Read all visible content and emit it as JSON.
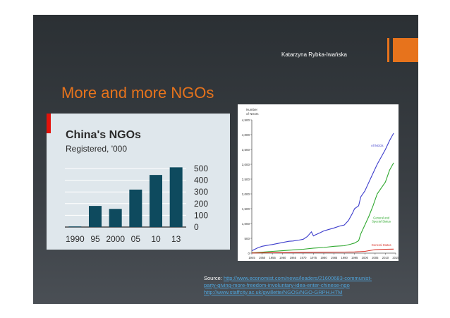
{
  "slide": {
    "author": "Katarzyna Rybka-Iwańska",
    "title": "More and more NGOs",
    "accent_color": "#e7731c"
  },
  "source": {
    "label": "Source: ",
    "links": [
      "http://www.economist.com/news/leaders/21600683-communist-",
      "party-giving-more-freedom-involuntary-idea-enter-chinese-ngo",
      "http://www.staffcity.ac.uk/gwillette/NGOS/NGO-GRPH.HTM"
    ]
  },
  "chart_data": [
    {
      "type": "bar",
      "title": "China's NGOs",
      "subtitle": "Registered, '000",
      "categories": [
        "1990",
        "95",
        "2000",
        "05",
        "10",
        "13"
      ],
      "values": [
        5,
        180,
        155,
        320,
        445,
        510
      ],
      "ylim": [
        0,
        500
      ],
      "yticks": [
        "0",
        "100",
        "200",
        "300",
        "400",
        "500"
      ],
      "bar_color": "#0e4a5e",
      "accent_color": "#e3120b"
    },
    {
      "type": "line",
      "ylabel": "Number of NGOs",
      "xlim": [
        1945,
        2015
      ],
      "ylim": [
        0,
        4500
      ],
      "xticks": [
        "1945",
        "1950",
        "1955",
        "1960",
        "1965",
        "1970",
        "1975",
        "1980",
        "1985",
        "1990",
        "1995",
        "2000",
        "2005",
        "2010",
        "2015"
      ],
      "yticks": [
        "0",
        "500",
        "1,000",
        "1,500",
        "2,000",
        "2,500",
        "3,000",
        "3,500",
        "4,000",
        "4,500"
      ],
      "series": [
        {
          "name": "All NGOs",
          "color": "#3c3ccc",
          "x": [
            1945,
            1948,
            1950,
            1953,
            1955,
            1958,
            1960,
            1963,
            1965,
            1968,
            1970,
            1972,
            1974,
            1975,
            1976,
            1978,
            1980,
            1982,
            1985,
            1988,
            1990,
            1992,
            1994,
            1995,
            1997,
            1998,
            2000,
            2002,
            2004,
            2006,
            2008,
            2010,
            2012,
            2014
          ],
          "y": [
            80,
            180,
            230,
            270,
            290,
            330,
            360,
            400,
            410,
            440,
            470,
            560,
            720,
            580,
            620,
            680,
            750,
            790,
            850,
            920,
            950,
            1100,
            1350,
            1500,
            1600,
            1900,
            2100,
            2400,
            2700,
            3000,
            3250,
            3500,
            3800,
            4050
          ]
        },
        {
          "name": "General and Special Status",
          "color": "#2fa82f",
          "x": [
            1945,
            1950,
            1955,
            1960,
            1965,
            1970,
            1975,
            1980,
            1985,
            1990,
            1993,
            1995,
            1997,
            1998,
            2000,
            2002,
            2004,
            2006,
            2008,
            2010,
            2012,
            2014
          ],
          "y": [
            10,
            30,
            60,
            80,
            110,
            130,
            170,
            190,
            230,
            250,
            300,
            340,
            420,
            650,
            950,
            1250,
            1600,
            2000,
            2200,
            2400,
            2800,
            3050
          ]
        },
        {
          "name": "General Status",
          "color": "#d9342b",
          "x": [
            1945,
            1950,
            1960,
            1970,
            1980,
            1990,
            1995,
            2000,
            2005,
            2010,
            2014
          ],
          "y": [
            5,
            10,
            20,
            25,
            30,
            35,
            40,
            60,
            120,
            130,
            135
          ]
        }
      ]
    }
  ]
}
